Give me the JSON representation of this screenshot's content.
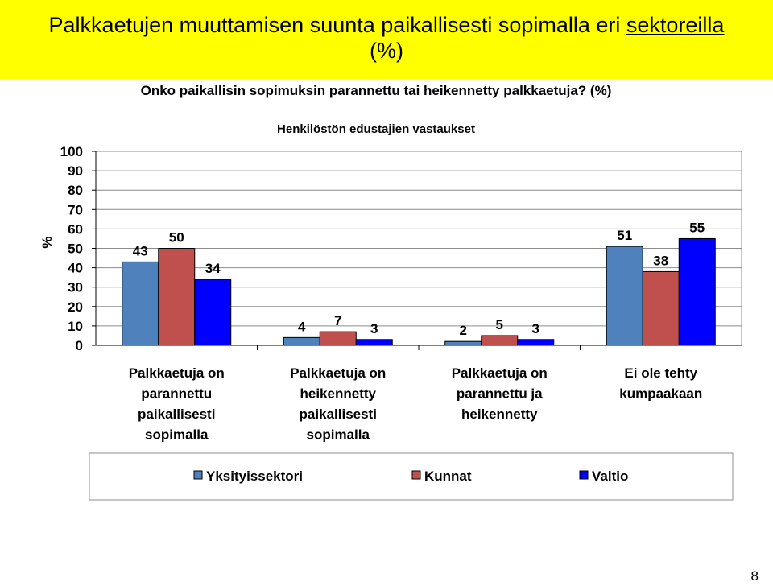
{
  "slide": {
    "title_part1": "Palkkaetujen muuttamisen suunta paikallisesti sopimalla eri ",
    "title_part2": "sektoreilla",
    "title_line2": "(%)",
    "page_number": "8"
  },
  "chart_data": {
    "type": "bar",
    "title": "Onko paikallisin sopimuksin parannettu tai heikennetty palkkaetuja? (%)",
    "subtitle": "Henkilöstön edustajien vastaukset",
    "ylabel": "%",
    "ylim": [
      0,
      100
    ],
    "yticks": [
      0,
      10,
      20,
      30,
      40,
      50,
      60,
      70,
      80,
      90,
      100
    ],
    "grid": true,
    "legend_position": "bottom",
    "categories": [
      [
        "Palkkaetuja on",
        "parannettu",
        "paikallisesti",
        "sopimalla"
      ],
      [
        "Palkkaetuja on",
        "heikennetty",
        "paikallisesti",
        "sopimalla"
      ],
      [
        "Palkkaetuja on",
        "parannettu ja",
        "heikennetty"
      ],
      [
        "Ei ole tehty",
        "kumpaakaan"
      ]
    ],
    "series": [
      {
        "name": "Yksityissektori",
        "color": "#4f81bd",
        "values": [
          43,
          4,
          2,
          51
        ]
      },
      {
        "name": "Kunnat",
        "color": "#c0504d",
        "values": [
          50,
          7,
          5,
          38
        ]
      },
      {
        "name": "Valtio",
        "color": "#0000ff",
        "values": [
          34,
          3,
          3,
          55
        ]
      }
    ]
  }
}
